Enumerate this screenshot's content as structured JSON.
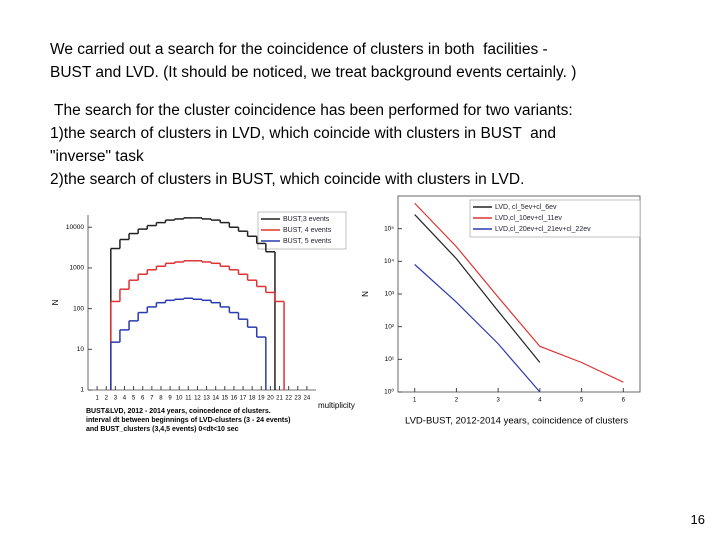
{
  "paragraphs": [
    [
      "We carried out a search for the coincidence of clusters in both  facilities -",
      "BUST and LVD. (It should be noticed, we treat background events certainly. )"
    ],
    [
      " The search for the cluster coincidence has been performed for two variants:",
      "1)the search of clusters in LVD, which coincide with clusters in BUST  and",
      "\"inverse\" task",
      "2)the search of clusters in BUST, which coincide with clusters in LVD."
    ]
  ],
  "page_number": "16",
  "chart_data": [
    {
      "type": "step",
      "y_label": "N",
      "x_label": "multiplicity",
      "log_y": true,
      "caption_lines": [
        "BUST&LVD, 2012 - 2014 years, coincedence of clusters.",
        "interval dt  between beginnings of LVD-clusters (3 - 24 events)",
        "and BUST_clusters (3,4,5 events)  0<dt<10 sec"
      ],
      "x": [
        3,
        4,
        5,
        6,
        7,
        8,
        9,
        10,
        11,
        12,
        13,
        14,
        15,
        16,
        17,
        18,
        19,
        20,
        21
      ],
      "series": [
        {
          "name": "BUST,3 events",
          "color": "#222222",
          "values": [
            3000,
            5000,
            7000,
            9000,
            11000,
            13000,
            15000,
            16000,
            17000,
            17000,
            16000,
            15000,
            13000,
            10000,
            8000,
            6000,
            4000,
            2500,
            null
          ]
        },
        {
          "name": "BUST, 4 events",
          "color": "#dd3333",
          "values": [
            150,
            300,
            500,
            700,
            900,
            1100,
            1300,
            1400,
            1500,
            1500,
            1400,
            1300,
            1100,
            900,
            700,
            500,
            350,
            250,
            150
          ]
        },
        {
          "name": "BUST, 5 events",
          "color": "#2a3bb0",
          "values": [
            15,
            30,
            50,
            80,
            110,
            140,
            160,
            170,
            180,
            170,
            160,
            140,
            110,
            80,
            55,
            35,
            20,
            null,
            null
          ]
        }
      ],
      "xlim": [
        0,
        25
      ],
      "xticks": [
        1,
        2,
        3,
        4,
        5,
        6,
        7,
        8,
        9,
        10,
        11,
        12,
        13,
        14,
        15,
        16,
        17,
        18,
        19,
        20,
        21,
        22,
        23,
        24
      ],
      "ylim": [
        1,
        20000
      ],
      "yticks": [
        1,
        10,
        100,
        1000,
        10000
      ]
    },
    {
      "type": "line",
      "y_label": "N",
      "log_y": true,
      "caption": "LVD-BUST, 2012-2014 years, coincidence  of clusters",
      "x": [
        1,
        2,
        3,
        4,
        5,
        6
      ],
      "series": [
        {
          "name": "LVD, cl_5ev+cl_6ev",
          "color": "#222222",
          "values": [
            270000,
            12000,
            300,
            8,
            null,
            null
          ]
        },
        {
          "name": "LVD,cl_10ev+cl_11ev",
          "color": "#dd3333",
          "values": [
            600000,
            28000,
            800,
            25,
            8,
            2
          ]
        },
        {
          "name": "LVD,cl_20ev+cl_21ev+cl_22ev",
          "color": "#2a3bb0",
          "values": [
            8000,
            560,
            30,
            1,
            null,
            null
          ]
        }
      ],
      "xlim": [
        0.6,
        6.4
      ],
      "xticks": [
        1,
        2,
        3,
        4,
        5,
        6
      ],
      "ylim": [
        1,
        1000000
      ],
      "yticks": [
        {
          "value": 1,
          "label": "10⁰"
        },
        {
          "value": 10,
          "label": "10¹"
        },
        {
          "value": 100,
          "label": "10²"
        },
        {
          "value": 1000,
          "label": "10³"
        },
        {
          "value": 10000,
          "label": "10⁴"
        },
        {
          "value": 100000,
          "label": "10⁵"
        }
      ]
    }
  ]
}
